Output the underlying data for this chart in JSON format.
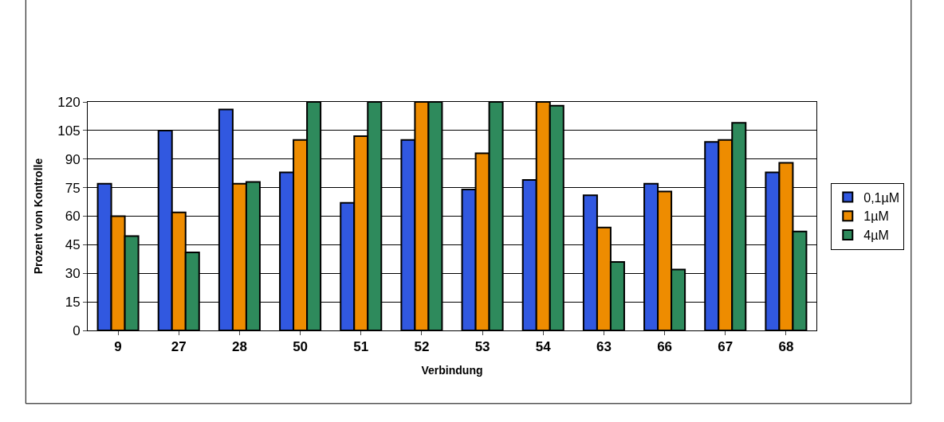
{
  "chart_data": {
    "type": "bar",
    "xlabel": "Verbindung",
    "ylabel": "Prozent von Kontrolle",
    "categories": [
      "9",
      "27",
      "28",
      "50",
      "51",
      "52",
      "53",
      "54",
      "63",
      "66",
      "67",
      "68"
    ],
    "series": [
      {
        "name": "0,1µM",
        "color": "#3158e0",
        "values": [
          77,
          105,
          116,
          83,
          67,
          100,
          74,
          79,
          71,
          77,
          99,
          83
        ]
      },
      {
        "name": "1µM",
        "color": "#ee8c00",
        "values": [
          60,
          62,
          77,
          100,
          102,
          120,
          93,
          120,
          54,
          73,
          100,
          88
        ]
      },
      {
        "name": "4µM",
        "color": "#2e8a5c",
        "values": [
          49.5,
          41,
          78,
          120,
          120,
          120,
          120,
          118,
          36,
          32,
          109,
          52
        ]
      }
    ],
    "ylim": [
      0,
      120
    ],
    "yticks": [
      0,
      15,
      30,
      45,
      60,
      75,
      90,
      105,
      120
    ],
    "grid": "y",
    "legend": "right"
  }
}
